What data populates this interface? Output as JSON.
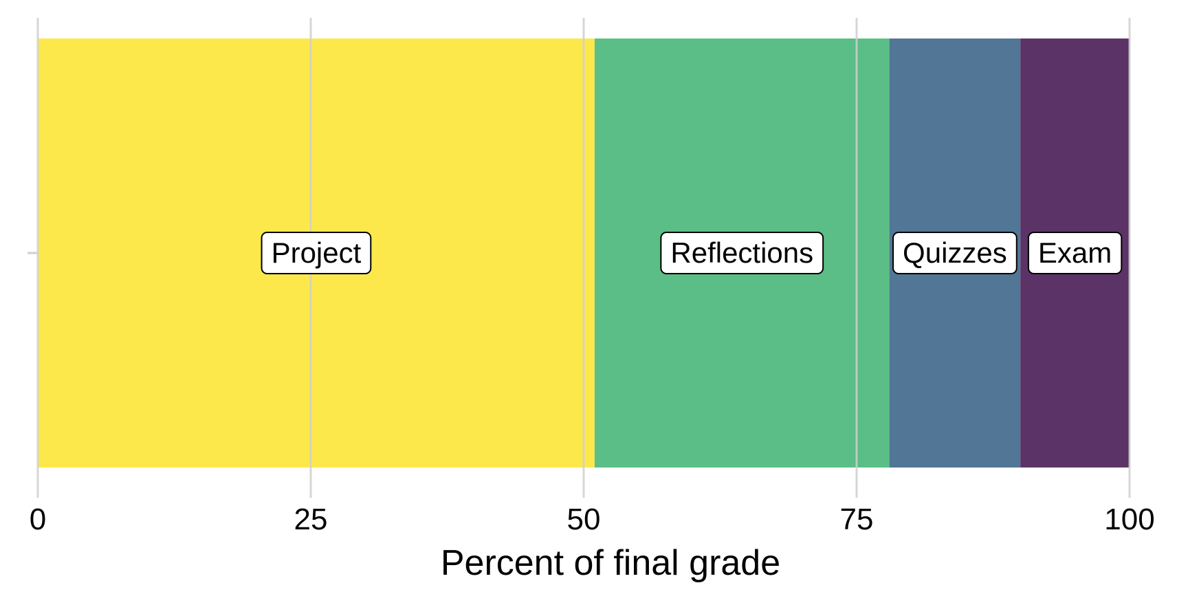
{
  "chart_data": {
    "type": "bar",
    "orientation": "horizontal-stacked",
    "xlabel": "Percent of final grade",
    "ylabel": "",
    "xlim": [
      0,
      100
    ],
    "xticks": [
      0,
      25,
      50,
      75,
      100
    ],
    "xtick_labels": [
      "0",
      "25",
      "50",
      "75",
      "100"
    ],
    "grid": true,
    "segments": [
      {
        "label": "Project",
        "start": 0,
        "end": 51,
        "value": 51,
        "color": "#FDE84B"
      },
      {
        "label": "Reflections",
        "start": 51,
        "end": 78,
        "value": 27,
        "color": "#5ABE86"
      },
      {
        "label": "Quizzes",
        "start": 78,
        "end": 90,
        "value": 12,
        "color": "#517696"
      },
      {
        "label": "Exam",
        "start": 90,
        "end": 100,
        "value": 10,
        "color": "#5B3366"
      }
    ]
  }
}
